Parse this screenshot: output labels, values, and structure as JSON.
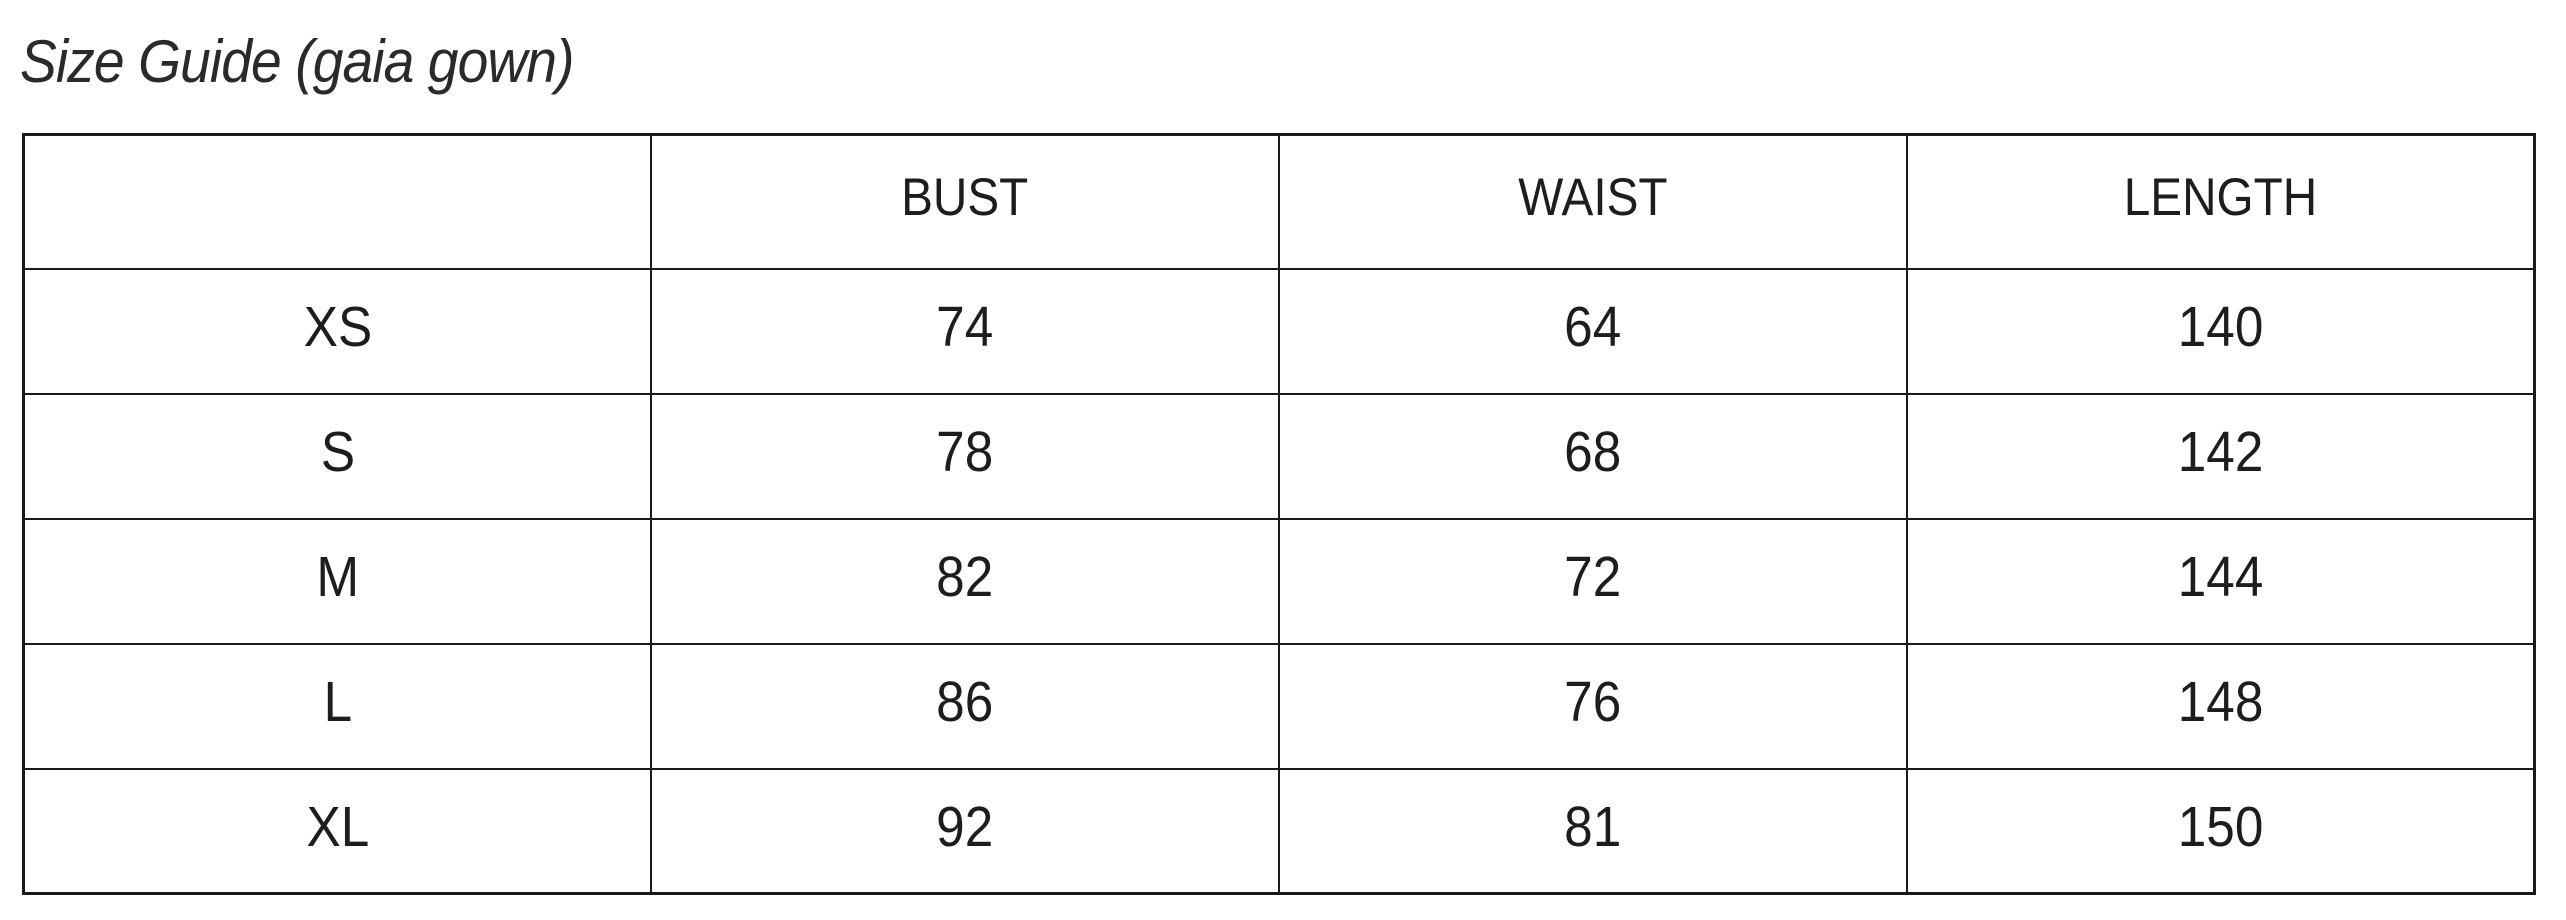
{
  "title": "Size Guide (gaia gown)",
  "table": {
    "headers": [
      "",
      "BUST",
      "WAIST",
      "LENGTH"
    ],
    "rows": [
      {
        "size": "XS",
        "bust": "74",
        "waist": "64",
        "length": "140"
      },
      {
        "size": "S",
        "bust": "78",
        "waist": "68",
        "length": "142"
      },
      {
        "size": "M",
        "bust": "82",
        "waist": "72",
        "length": "144"
      },
      {
        "size": "L",
        "bust": "86",
        "waist": "76",
        "length": "148"
      },
      {
        "size": "XL",
        "bust": "92",
        "waist": "81",
        "length": "150"
      }
    ]
  },
  "colors": {
    "background": "#ffffff",
    "text": "#1d1d1d",
    "title_text": "#2a2a2a",
    "border": "#1a1a1a"
  }
}
